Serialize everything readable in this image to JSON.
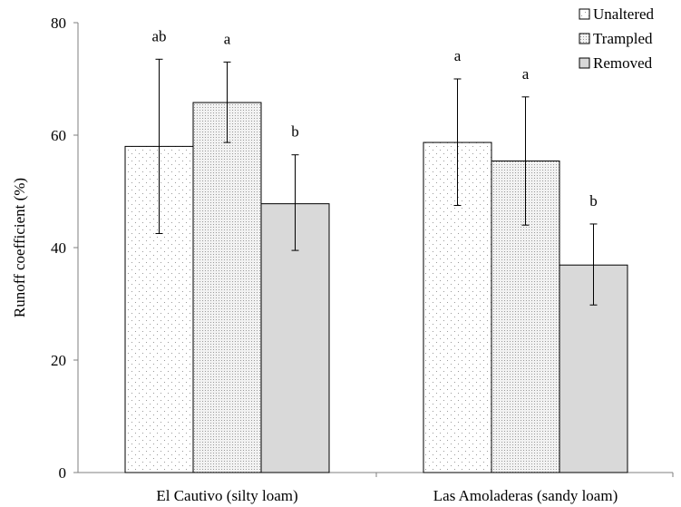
{
  "chart_data": {
    "type": "bar",
    "title": "",
    "xlabel": "",
    "ylabel": "Runoff coefficient (%)",
    "ylim": [
      0,
      80
    ],
    "yticks": [
      0,
      20,
      40,
      60,
      80
    ],
    "grid": false,
    "legend_position": "top-right",
    "categories": [
      "El Cautivo (silty loam)",
      "Las Amoladeras (sandy loam)"
    ],
    "series": [
      {
        "name": "Unaltered",
        "pattern": "sparse-dots",
        "values": [
          58.0,
          58.7
        ],
        "err_low": [
          42.5,
          47.5
        ],
        "err_high": [
          73.5,
          70.0
        ],
        "letters": [
          "ab",
          "a"
        ]
      },
      {
        "name": "Trampled",
        "pattern": "dense-dots",
        "values": [
          65.8,
          55.4
        ],
        "err_low": [
          58.7,
          44.0
        ],
        "err_high": [
          73.0,
          66.8
        ],
        "letters": [
          "a",
          "a"
        ]
      },
      {
        "name": "Removed",
        "pattern": "solid-gray",
        "values": [
          47.8,
          36.9
        ],
        "err_low": [
          39.5,
          29.8
        ],
        "err_high": [
          56.5,
          44.2
        ],
        "letters": [
          "b",
          "b"
        ]
      }
    ],
    "colors": {
      "solid_gray": "#d9d9d9",
      "axis": "#7f7f7f",
      "bar_edge": "#000000"
    }
  }
}
